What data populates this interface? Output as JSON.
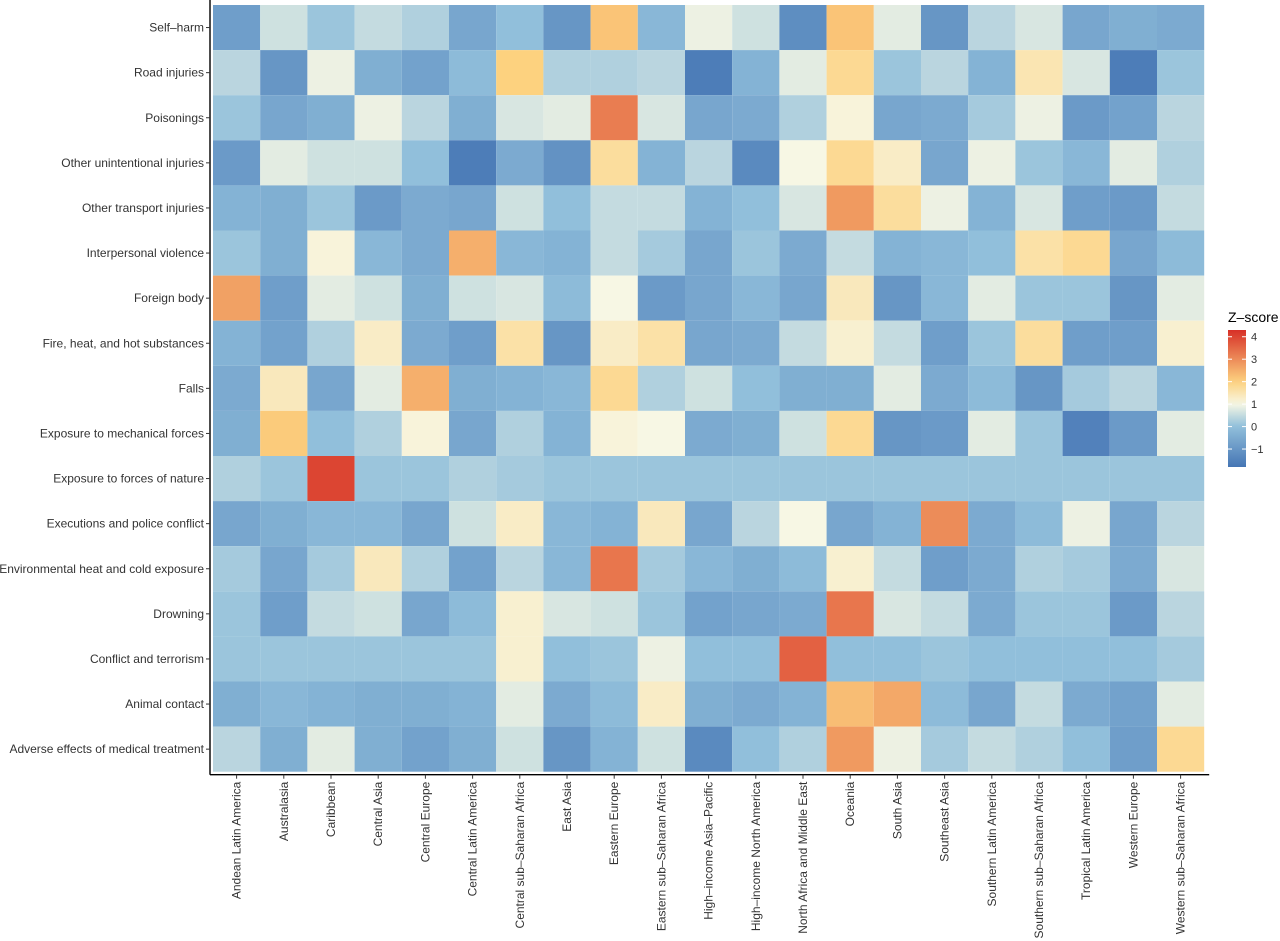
{
  "chart_data": {
    "type": "heatmap",
    "title": "",
    "xlabel": "",
    "ylabel": "",
    "x_categories": [
      "Andean Latin America",
      "Australasia",
      "Caribbean",
      "Central Asia",
      "Central Europe",
      "Central Latin America",
      "Central sub–Saharan Africa",
      "East Asia",
      "Eastern Europe",
      "Eastern sub–Saharan Africa",
      "High–income Asia–Pacific",
      "High–income North America",
      "North Africa and Middle East",
      "Oceania",
      "South Asia",
      "Southeast Asia",
      "Southern Latin America",
      "Southern sub–Saharan Africa",
      "Tropical Latin America",
      "Western Europe",
      "Western sub–Saharan Africa"
    ],
    "y_categories": [
      "Self–harm",
      "Road injuries",
      "Poisonings",
      "Other unintentional injuries",
      "Other transport injuries",
      "Interpersonal violence",
      "Foreign body",
      "Fire, heat, and hot substances",
      "Falls",
      "Exposure to mechanical forces",
      "Exposure to forces of nature",
      "Executions and police conflict",
      "Environmental heat and cold exposure",
      "Drowning",
      "Conflict and terrorism",
      "Animal contact",
      "Adverse effects of medical treatment"
    ],
    "values": [
      [
        -0.8,
        0.6,
        0.1,
        0.5,
        0.3,
        -0.6,
        0.0,
        -1.0,
        2.2,
        -0.2,
        0.9,
        0.6,
        -1.2,
        2.2,
        0.8,
        -1.0,
        0.4,
        0.7,
        -0.6,
        -0.4,
        -0.5
      ],
      [
        0.4,
        -1.0,
        0.9,
        -0.4,
        -0.7,
        -0.1,
        2.0,
        0.3,
        0.3,
        0.4,
        -1.6,
        -0.3,
        0.8,
        1.8,
        0.1,
        0.4,
        -0.3,
        1.5,
        0.7,
        -1.6,
        0.1
      ],
      [
        0.1,
        -0.6,
        -0.4,
        0.9,
        0.4,
        -0.4,
        0.7,
        0.8,
        3.2,
        0.7,
        -0.6,
        -0.5,
        0.3,
        1.1,
        -0.6,
        -0.5,
        0.2,
        0.9,
        -0.9,
        -0.7,
        0.4
      ],
      [
        -0.9,
        0.8,
        0.6,
        0.6,
        0.0,
        -1.6,
        -0.5,
        -1.1,
        1.7,
        -0.3,
        0.4,
        -1.3,
        1.0,
        1.8,
        1.3,
        -0.6,
        0.9,
        0.1,
        -0.2,
        0.8,
        0.3
      ],
      [
        -0.3,
        -0.4,
        0.1,
        -0.9,
        -0.5,
        -0.6,
        0.6,
        0.0,
        0.5,
        0.5,
        -0.3,
        0.0,
        0.7,
        2.8,
        1.7,
        0.9,
        -0.3,
        0.7,
        -0.8,
        -0.9,
        0.5
      ],
      [
        0.1,
        -0.4,
        1.1,
        -0.2,
        -0.5,
        2.5,
        -0.2,
        -0.3,
        0.5,
        0.2,
        -0.6,
        0.1,
        -0.5,
        0.5,
        -0.3,
        -0.2,
        0.0,
        1.6,
        1.8,
        -0.6,
        -0.1
      ],
      [
        2.7,
        -0.8,
        0.8,
        0.6,
        -0.4,
        0.6,
        0.7,
        -0.1,
        1.0,
        -0.9,
        -0.6,
        -0.2,
        -0.6,
        1.4,
        -1.0,
        -0.2,
        0.8,
        0.1,
        0.1,
        -1.0,
        0.8
      ],
      [
        -0.3,
        -0.7,
        0.3,
        1.3,
        -0.5,
        -0.8,
        1.6,
        -1.0,
        1.3,
        1.6,
        -0.6,
        -0.5,
        0.5,
        1.2,
        0.5,
        -0.8,
        0.1,
        1.7,
        -0.8,
        -0.8,
        1.2
      ],
      [
        -0.5,
        1.4,
        -0.6,
        0.8,
        2.5,
        -0.4,
        -0.3,
        -0.2,
        1.8,
        0.3,
        0.6,
        0.0,
        -0.4,
        -0.4,
        0.8,
        -0.5,
        -0.1,
        -1.0,
        0.2,
        0.4,
        -0.2
      ],
      [
        -0.4,
        2.1,
        0.0,
        0.3,
        1.1,
        -0.6,
        0.3,
        -0.3,
        1.1,
        1.0,
        -0.5,
        -0.4,
        0.6,
        1.8,
        -1.0,
        -0.9,
        0.8,
        0.1,
        -1.5,
        -0.9,
        0.8
      ],
      [
        0.3,
        0.1,
        4.0,
        0.1,
        0.1,
        0.3,
        0.2,
        0.1,
        0.1,
        0.1,
        0.1,
        0.1,
        0.1,
        0.1,
        0.1,
        0.1,
        0.1,
        0.1,
        0.1,
        0.1,
        0.1
      ],
      [
        -0.6,
        -0.4,
        -0.2,
        -0.2,
        -0.6,
        0.6,
        1.3,
        -0.2,
        -0.3,
        1.4,
        -0.6,
        0.4,
        1.0,
        -0.6,
        -0.3,
        3.0,
        -0.5,
        -0.1,
        0.9,
        -0.6,
        0.4
      ],
      [
        0.2,
        -0.6,
        0.2,
        1.4,
        0.3,
        -0.7,
        0.4,
        -0.2,
        3.3,
        0.2,
        -0.2,
        -0.4,
        -0.1,
        1.2,
        0.5,
        -0.8,
        -0.5,
        0.3,
        0.2,
        -0.5,
        0.7
      ],
      [
        0.1,
        -0.8,
        0.5,
        0.6,
        -0.6,
        -0.1,
        1.2,
        0.7,
        0.6,
        0.1,
        -0.7,
        -0.6,
        -0.5,
        3.3,
        0.7,
        0.5,
        -0.5,
        0.1,
        0.1,
        -0.9,
        0.4
      ],
      [
        0.1,
        0.1,
        0.1,
        0.1,
        0.1,
        0.1,
        1.2,
        0.0,
        0.1,
        0.9,
        0.0,
        0.0,
        3.6,
        0.0,
        0.0,
        0.1,
        0.0,
        0.0,
        0.0,
        0.0,
        0.2
      ],
      [
        -0.4,
        -0.2,
        -0.3,
        -0.4,
        -0.4,
        -0.3,
        0.8,
        -0.5,
        -0.1,
        1.3,
        -0.4,
        -0.5,
        -0.3,
        2.3,
        2.6,
        -0.1,
        -0.6,
        0.5,
        -0.5,
        -0.7,
        0.8
      ],
      [
        0.4,
        -0.4,
        0.8,
        -0.4,
        -0.7,
        -0.4,
        0.6,
        -1.0,
        -0.3,
        0.6,
        -1.3,
        0.0,
        0.3,
        2.8,
        0.9,
        0.2,
        0.5,
        0.3,
        0.0,
        -0.8,
        1.8
      ]
    ],
    "legend": {
      "title": "Z–score",
      "ticks": [
        -1,
        0,
        1,
        2,
        3,
        4
      ],
      "tick_labels": [
        "−1",
        "0",
        "1",
        "2",
        "3",
        "4"
      ],
      "range": [
        -1.8,
        4.3
      ],
      "placement": "right"
    },
    "color_scale": {
      "low": "#4575b4",
      "mid_low": "#91bfdb",
      "mid": "#f7f7e4",
      "mid_high": "#fdd27f",
      "high": "#d73027"
    },
    "grid": false
  }
}
